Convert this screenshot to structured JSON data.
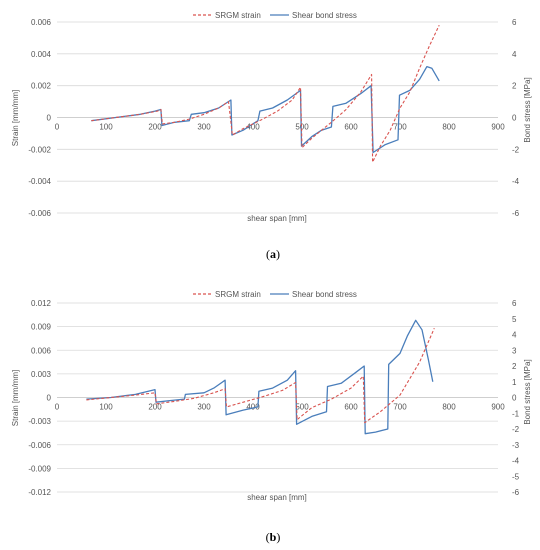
{
  "chart_data": [
    {
      "panel": "(a)",
      "caption_open": "(",
      "caption_letter": "a",
      "caption_close": ")",
      "type": "line",
      "xlabel": "shear span [mm]",
      "ylabel_left": "Strain [mm/mm]",
      "ylabel_right": "Bond stress [MPa]",
      "xlim": [
        0,
        900
      ],
      "ylim_left": [
        -0.006,
        0.006
      ],
      "ylim_right": [
        -6,
        6
      ],
      "x_ticks": [
        "0",
        "100",
        "200",
        "300",
        "400",
        "500",
        "600",
        "700",
        "800",
        "900"
      ],
      "x_tick_values": [
        0,
        100,
        200,
        300,
        400,
        500,
        600,
        700,
        800,
        900
      ],
      "y_left_ticks": [
        "0.006",
        "0.004",
        "0.002",
        "0",
        "-0.002",
        "-0.004",
        "-0.006"
      ],
      "y_left_tick_values": [
        0.006,
        0.004,
        0.002,
        0,
        -0.002,
        -0.004,
        -0.006
      ],
      "y_right_ticks": [
        "6",
        "4",
        "2",
        "0",
        "-2",
        "-4",
        "-6"
      ],
      "y_right_tick_values": [
        6,
        4,
        2,
        0,
        -2,
        -4,
        -6
      ],
      "grid": "horizontal",
      "legend_position": "top",
      "series": [
        {
          "name": "SRGM strain",
          "axis": "left",
          "color": "#d9534f",
          "style": "dashed",
          "points": [
            [
              70,
              -0.0002
            ],
            [
              120,
              0.0
            ],
            [
              170,
              0.0002
            ],
            [
              205,
              0.0004
            ],
            [
              212,
              0.0005
            ],
            [
              215,
              -0.0004
            ],
            [
              240,
              -0.0003
            ],
            [
              270,
              -0.0001
            ],
            [
              300,
              0.0002
            ],
            [
              330,
              0.0006
            ],
            [
              350,
              0.001
            ],
            [
              358,
              -0.0011
            ],
            [
              380,
              -0.0007
            ],
            [
              400,
              -0.0004
            ],
            [
              420,
              -0.0001
            ],
            [
              450,
              0.0004
            ],
            [
              480,
              0.0011
            ],
            [
              497,
              0.0019
            ],
            [
              500,
              -0.0019
            ],
            [
              520,
              -0.0013
            ],
            [
              540,
              -0.0008
            ],
            [
              560,
              -0.0003
            ],
            [
              590,
              0.0005
            ],
            [
              620,
              0.0016
            ],
            [
              642,
              0.0027
            ],
            [
              644,
              -0.0028
            ],
            [
              660,
              -0.0018
            ],
            [
              680,
              -0.0008
            ],
            [
              700,
              0.0006
            ],
            [
              720,
              0.0016
            ],
            [
              740,
              0.0031
            ],
            [
              760,
              0.0045
            ],
            [
              780,
              0.0058
            ]
          ]
        },
        {
          "name": "Shear bond stress",
          "axis": "right",
          "color": "#4a7ebb",
          "style": "solid",
          "points": [
            [
              70,
              -0.2
            ],
            [
              120,
              0.0
            ],
            [
              170,
              0.2
            ],
            [
              200,
              0.4
            ],
            [
              212,
              0.5
            ],
            [
              214,
              -0.5
            ],
            [
              240,
              -0.3
            ],
            [
              270,
              -0.2
            ],
            [
              274,
              0.2
            ],
            [
              300,
              0.3
            ],
            [
              330,
              0.6
            ],
            [
              355,
              1.1
            ],
            [
              357,
              -1.1
            ],
            [
              380,
              -0.8
            ],
            [
              410,
              -0.2
            ],
            [
              414,
              0.4
            ],
            [
              440,
              0.6
            ],
            [
              470,
              1.1
            ],
            [
              497,
              1.7
            ],
            [
              499,
              -1.8
            ],
            [
              520,
              -1.2
            ],
            [
              540,
              -0.8
            ],
            [
              560,
              -0.6
            ],
            [
              563,
              0.7
            ],
            [
              590,
              0.9
            ],
            [
              620,
              1.5
            ],
            [
              641,
              2.0
            ],
            [
              645,
              -2.2
            ],
            [
              670,
              -1.7
            ],
            [
              696,
              -1.4
            ],
            [
              699,
              1.4
            ],
            [
              720,
              1.7
            ],
            [
              740,
              2.4
            ],
            [
              755,
              3.2
            ],
            [
              765,
              3.1
            ],
            [
              780,
              2.3
            ]
          ]
        }
      ]
    },
    {
      "panel": "(b)",
      "caption_open": "(",
      "caption_letter": "b",
      "caption_close": ")",
      "type": "line",
      "xlabel": "shear span [mm]",
      "ylabel_left": "Strain [mm/mm]",
      "ylabel_right": "Bond stress [MPa]",
      "xlim": [
        0,
        900
      ],
      "ylim_left": [
        -0.012,
        0.012
      ],
      "ylim_right": [
        -6,
        6
      ],
      "x_ticks": [
        "0",
        "100",
        "200",
        "300",
        "400",
        "500",
        "600",
        "700",
        "800",
        "900"
      ],
      "x_tick_values": [
        0,
        100,
        200,
        300,
        400,
        500,
        600,
        700,
        800,
        900
      ],
      "y_left_ticks": [
        "0.012",
        "0.009",
        "0.006",
        "0.003",
        "0",
        "-0.003",
        "-0.006",
        "-0.009",
        "-0.012"
      ],
      "y_left_tick_values": [
        0.012,
        0.009,
        0.006,
        0.003,
        0,
        -0.003,
        -0.006,
        -0.009,
        -0.012
      ],
      "y_right_ticks": [
        "6",
        "5",
        "4",
        "3",
        "2",
        "1",
        "0",
        "-1",
        "-2",
        "-3",
        "-4",
        "-5",
        "-6"
      ],
      "y_right_tick_values": [
        6,
        5,
        4,
        3,
        2,
        1,
        0,
        -1,
        -2,
        -3,
        -4,
        -5,
        -6
      ],
      "grid": "horizontal",
      "legend_position": "top",
      "series": [
        {
          "name": "SRGM strain",
          "axis": "left",
          "color": "#d9534f",
          "style": "dashed",
          "points": [
            [
              60,
              -0.0003
            ],
            [
              110,
              0.0
            ],
            [
              160,
              0.0003
            ],
            [
              200,
              0.0006
            ],
            [
              203,
              -0.0008
            ],
            [
              240,
              -0.0005
            ],
            [
              280,
              -0.0001
            ],
            [
              320,
              0.0006
            ],
            [
              343,
              0.0011
            ],
            [
              346,
              -0.0012
            ],
            [
              380,
              -0.0006
            ],
            [
              420,
              0.0001
            ],
            [
              460,
              0.0009
            ],
            [
              487,
              0.0019
            ],
            [
              490,
              -0.0028
            ],
            [
              520,
              -0.0013
            ],
            [
              560,
              -0.0002
            ],
            [
              600,
              0.0012
            ],
            [
              625,
              0.0027
            ],
            [
              628,
              -0.0032
            ],
            [
              660,
              -0.0018
            ],
            [
              700,
              0.0003
            ],
            [
              740,
              0.0045
            ],
            [
              770,
              0.0088
            ]
          ]
        },
        {
          "name": "Shear bond stress",
          "axis": "right",
          "color": "#4a7ebb",
          "style": "solid",
          "points": [
            [
              60,
              -0.1
            ],
            [
              110,
              0.0
            ],
            [
              160,
              0.2
            ],
            [
              200,
              0.5
            ],
            [
              202,
              -0.3
            ],
            [
              230,
              -0.2
            ],
            [
              260,
              -0.1
            ],
            [
              262,
              0.2
            ],
            [
              300,
              0.3
            ],
            [
              320,
              0.6
            ],
            [
              343,
              1.1
            ],
            [
              345,
              -1.1
            ],
            [
              380,
              -0.8
            ],
            [
              410,
              -0.6
            ],
            [
              412,
              0.4
            ],
            [
              440,
              0.6
            ],
            [
              470,
              1.1
            ],
            [
              487,
              1.7
            ],
            [
              489,
              -1.7
            ],
            [
              520,
              -1.2
            ],
            [
              550,
              -0.9
            ],
            [
              552,
              0.7
            ],
            [
              580,
              0.9
            ],
            [
              610,
              1.6
            ],
            [
              627,
              2.0
            ],
            [
              629,
              -2.3
            ],
            [
              650,
              -2.2
            ],
            [
              675,
              -2.0
            ],
            [
              677,
              2.1
            ],
            [
              700,
              2.8
            ],
            [
              715,
              3.9
            ],
            [
              732,
              4.9
            ],
            [
              745,
              4.3
            ],
            [
              758,
              2.4
            ],
            [
              767,
              1.0
            ]
          ]
        }
      ]
    }
  ]
}
